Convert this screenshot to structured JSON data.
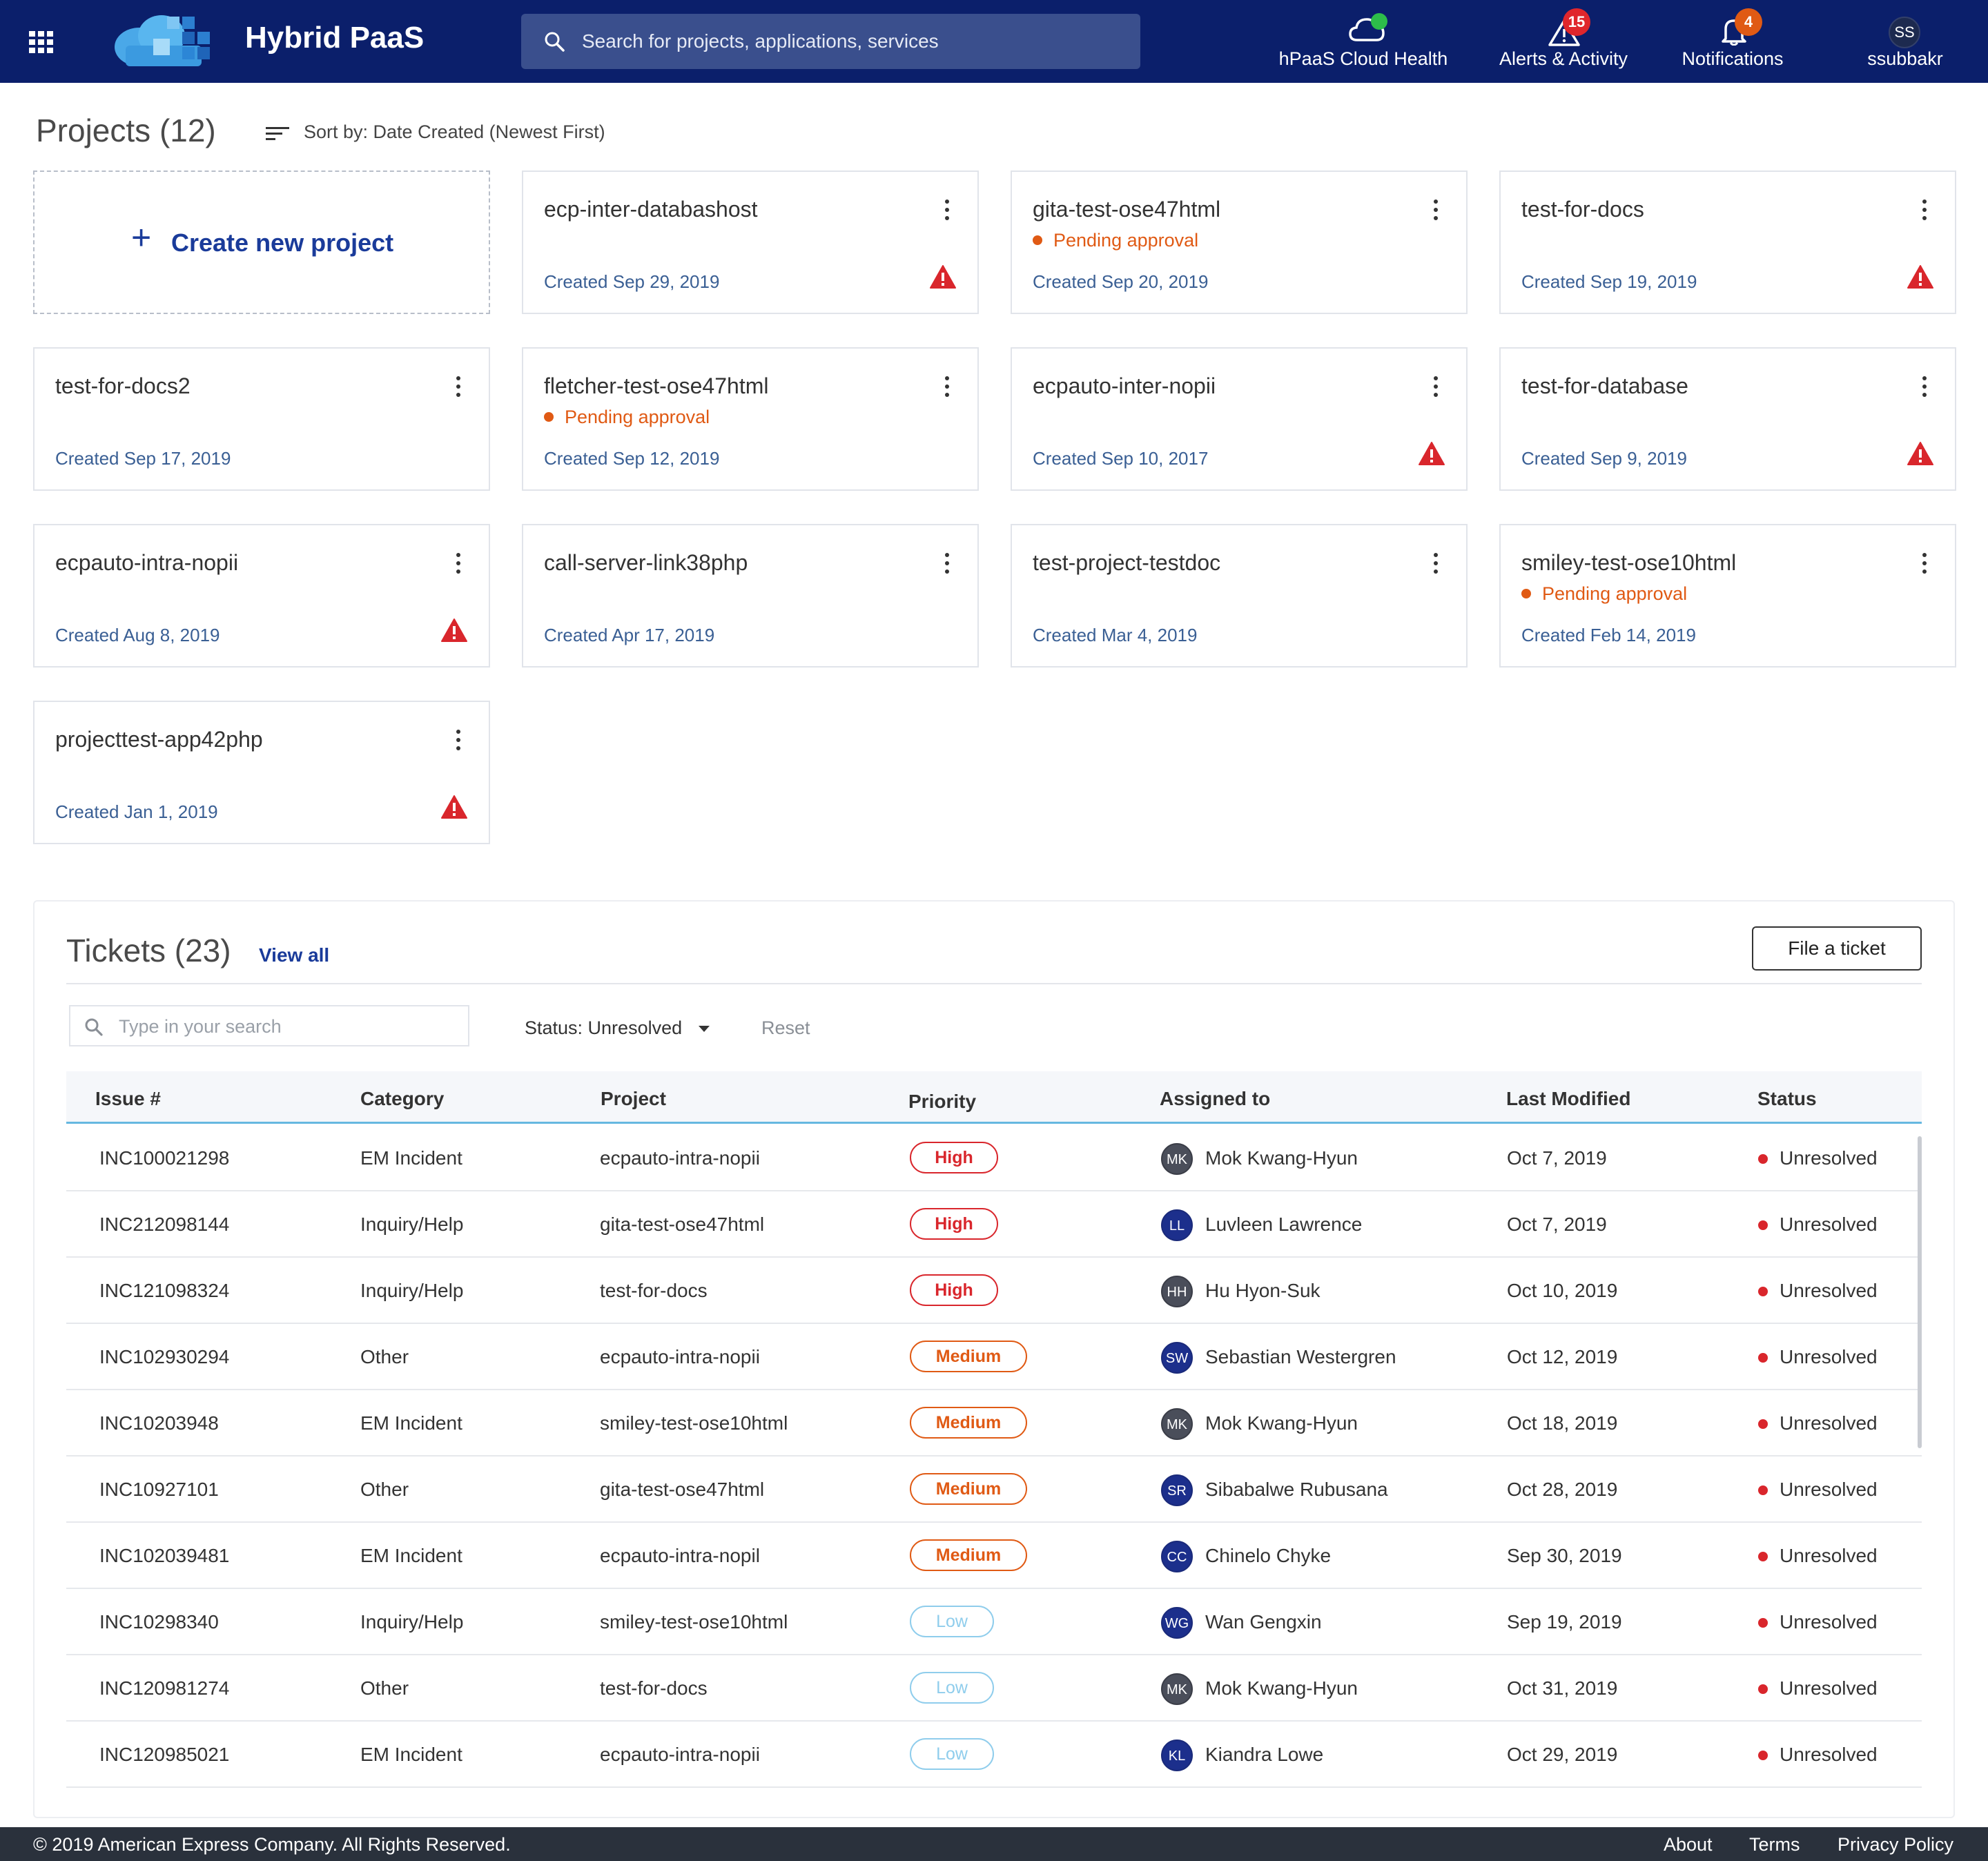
{
  "header": {
    "app_title": "Hybrid PaaS",
    "search_placeholder": "Search for projects, applications, services",
    "nav": [
      {
        "label": "hPaaS Cloud Health",
        "icon": "cloud-icon",
        "status_color": "#2dbd4a"
      },
      {
        "label": "Alerts & Activity",
        "icon": "alert-triangle-icon",
        "badge": "15",
        "badge_color": "#e0262c"
      },
      {
        "label": "Notifications",
        "icon": "bell-icon",
        "badge": "4",
        "badge_color": "#e05a14"
      },
      {
        "label": "ssubbakr",
        "avatar": "SS"
      }
    ]
  },
  "projects": {
    "title": "Projects (12)",
    "sort_label": "Sort by: Date Created (Newest First)",
    "create_label": "Create new project",
    "create_plus": "+",
    "pending_label": "Pending approval",
    "items": [
      {
        "name": "ecp-inter-databashost",
        "created": "Created Sep 29, 2019",
        "pending": false,
        "warning": true
      },
      {
        "name": "gita-test-ose47html",
        "created": "Created Sep 20, 2019",
        "pending": true,
        "warning": false
      },
      {
        "name": "test-for-docs",
        "created": "Created Sep 19, 2019",
        "pending": false,
        "warning": true
      },
      {
        "name": "test-for-docs2",
        "created": "Created Sep 17, 2019",
        "pending": false,
        "warning": false
      },
      {
        "name": "fletcher-test-ose47html",
        "created": "Created Sep 12, 2019",
        "pending": true,
        "warning": false
      },
      {
        "name": "ecpauto-inter-nopii",
        "created": "Created Sep 10, 2017",
        "pending": false,
        "warning": true
      },
      {
        "name": "test-for-database",
        "created": "Created Sep 9, 2019",
        "pending": false,
        "warning": true
      },
      {
        "name": "ecpauto-intra-nopii",
        "created": "Created Aug 8, 2019",
        "pending": false,
        "warning": true
      },
      {
        "name": "call-server-link38php",
        "created": "Created Apr 17, 2019",
        "pending": false,
        "warning": false
      },
      {
        "name": "test-project-testdoc",
        "created": "Created Mar 4, 2019",
        "pending": false,
        "warning": false
      },
      {
        "name": "smiley-test-ose10html",
        "created": "Created Feb 14, 2019",
        "pending": true,
        "warning": false
      },
      {
        "name": "projecttest-app42php",
        "created": "Created Jan 1, 2019",
        "pending": false,
        "warning": true
      }
    ]
  },
  "tickets": {
    "title": "Tickets (23)",
    "view_all": "View all",
    "file_button": "File a ticket",
    "search_placeholder": "Type in your search",
    "status_filter": "Status: Unresolved",
    "reset": "Reset",
    "columns": [
      "Issue #",
      "Category",
      "Project",
      "Priority",
      "Assigned to",
      "Last Modified",
      "Status"
    ],
    "rows": [
      {
        "issue": "INC100021298",
        "category": "EM Incident",
        "project": "ecpauto-intra-nopii",
        "priority": "High",
        "initials": "MK",
        "assignee": "Mok Kwang-Hyun",
        "avatar_style": "dark",
        "modified": "Oct 7, 2019",
        "status": "Unresolved"
      },
      {
        "issue": "INC212098144",
        "category": "Inquiry/Help",
        "project": "gita-test-ose47html",
        "priority": "High",
        "initials": "LL",
        "assignee": "Luvleen Lawrence",
        "avatar_style": "blue",
        "modified": "Oct 7, 2019",
        "status": "Unresolved"
      },
      {
        "issue": "INC121098324",
        "category": "Inquiry/Help",
        "project": "test-for-docs",
        "priority": "High",
        "initials": "HH",
        "assignee": "Hu Hyon-Suk",
        "avatar_style": "dark",
        "modified": "Oct 10, 2019",
        "status": "Unresolved"
      },
      {
        "issue": "INC102930294",
        "category": "Other",
        "project": "ecpauto-intra-nopii",
        "priority": "Medium",
        "initials": "SW",
        "assignee": "Sebastian Westergren",
        "avatar_style": "blue",
        "modified": "Oct 12, 2019",
        "status": "Unresolved"
      },
      {
        "issue": "INC10203948",
        "category": "EM Incident",
        "project": "smiley-test-ose10html",
        "priority": "Medium",
        "initials": "MK",
        "assignee": "Mok Kwang-Hyun",
        "avatar_style": "dark",
        "modified": "Oct 18, 2019",
        "status": "Unresolved"
      },
      {
        "issue": "INC10927101",
        "category": "Other",
        "project": "gita-test-ose47html",
        "priority": "Medium",
        "initials": "SR",
        "assignee": "Sibabalwe Rubusana",
        "avatar_style": "blue",
        "modified": "Oct 28, 2019",
        "status": "Unresolved"
      },
      {
        "issue": "INC102039481",
        "category": "EM Incident",
        "project": "ecpauto-intra-nopil",
        "priority": "Medium",
        "initials": "CC",
        "assignee": "Chinelo Chyke",
        "avatar_style": "blue",
        "modified": "Sep 30, 2019",
        "status": "Unresolved"
      },
      {
        "issue": "INC10298340",
        "category": "Inquiry/Help",
        "project": "smiley-test-ose10html",
        "priority": "Low",
        "initials": "WG",
        "assignee": "Wan Gengxin",
        "avatar_style": "blue",
        "modified": "Sep 19, 2019",
        "status": "Unresolved"
      },
      {
        "issue": "INC120981274",
        "category": "Other",
        "project": "test-for-docs",
        "priority": "Low",
        "initials": "MK",
        "assignee": "Mok Kwang-Hyun",
        "avatar_style": "dark",
        "modified": "Oct 31, 2019",
        "status": "Unresolved"
      },
      {
        "issue": "INC120985021",
        "category": "EM Incident",
        "project": "ecpauto-intra-nopii",
        "priority": "Low",
        "initials": "KL",
        "assignee": "Kiandra Lowe",
        "avatar_style": "blue",
        "modified": "Oct 29, 2019",
        "status": "Unresolved"
      }
    ]
  },
  "footer": {
    "copyright": "© 2019 American Express Company. All Rights Reserved.",
    "links": [
      "About",
      "Terms",
      "Privacy Policy"
    ]
  },
  "colors": {
    "header_bg": "#0b1f6b",
    "accent": "#1a3b9a",
    "pending": "#e05a14",
    "high": "#d9262c",
    "medium": "#e05a14",
    "low": "#8fcdec"
  }
}
